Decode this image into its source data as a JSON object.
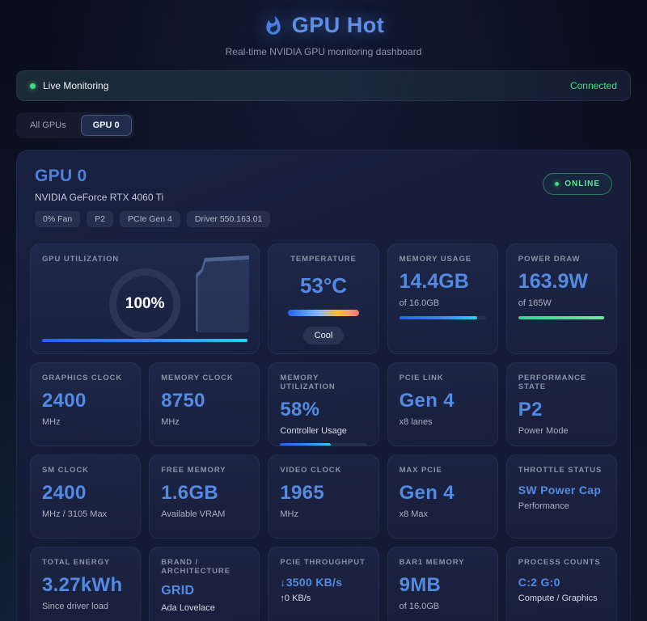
{
  "header": {
    "title": "GPU Hot",
    "subtitle": "Real-time NVIDIA GPU monitoring dashboard"
  },
  "status_bar": {
    "label": "Live Monitoring",
    "connection": "Connected"
  },
  "tabs": {
    "all_gpus": "All GPUs",
    "gpu0": "GPU 0"
  },
  "gpu": {
    "name": "GPU 0",
    "model": "NVIDIA GeForce RTX 4060 Ti",
    "online": "ONLINE",
    "badges": [
      "0% Fan",
      "P2",
      "PCIe Gen 4",
      "Driver 550.163.01"
    ]
  },
  "metrics": {
    "utilization": {
      "label": "GPU UTILIZATION",
      "value": "100%",
      "percent": 100
    },
    "temperature": {
      "label": "TEMPERATURE",
      "value": "53°C",
      "status": "Cool"
    },
    "memory_usage": {
      "label": "MEMORY USAGE",
      "value": "14.4GB",
      "sub": "of 16.0GB",
      "percent": 90
    },
    "power_draw": {
      "label": "POWER DRAW",
      "value": "163.9W",
      "sub": "of 165W",
      "percent": 99
    },
    "row2": [
      {
        "label": "GRAPHICS CLOCK",
        "value": "2400",
        "sub": "MHz"
      },
      {
        "label": "MEMORY CLOCK",
        "value": "8750",
        "sub": "MHz"
      },
      {
        "label": "MEMORY UTILIZATION",
        "value": "58%",
        "sub": "Controller Usage",
        "percent": 58
      },
      {
        "label": "PCIE LINK",
        "value": "Gen 4",
        "sub": "x8 lanes"
      },
      {
        "label": "PERFORMANCE STATE",
        "value": "P2",
        "sub": "Power Mode"
      }
    ],
    "row3": [
      {
        "label": "SM CLOCK",
        "value": "2400",
        "sub": "MHz / 3105 Max"
      },
      {
        "label": "FREE MEMORY",
        "value": "1.6GB",
        "sub": "Available VRAM"
      },
      {
        "label": "VIDEO CLOCK",
        "value": "1965",
        "sub": "MHz"
      },
      {
        "label": "MAX PCIE",
        "value": "Gen 4",
        "sub": "x8 Max"
      },
      {
        "label": "THROTTLE STATUS",
        "value": "SW Power Cap",
        "sub": "Performance"
      }
    ],
    "row4": [
      {
        "label": "TOTAL ENERGY",
        "value": "3.27kWh",
        "sub": "Since driver load"
      },
      {
        "label": "BRAND / ARCHITECTURE",
        "value": "GRID",
        "sub": "Ada Lovelace"
      },
      {
        "label": "PCIE THROUGHPUT",
        "value": "↓3500 KB/s",
        "sub": "↑0 KB/s"
      },
      {
        "label": "BAR1 MEMORY",
        "value": "9MB",
        "sub": "of 16.0GB"
      },
      {
        "label": "PROCESS COUNTS",
        "value": "C:2 G:0",
        "sub": "Compute / Graphics"
      }
    ]
  },
  "colors": {
    "accent_blue": "#548ae2",
    "success_green": "#4ade80",
    "bar_gradient_start": "#2563eb",
    "bar_gradient_end": "#22d3ee",
    "panel_bg": "#151c38",
    "page_bg": "#0b1022"
  }
}
